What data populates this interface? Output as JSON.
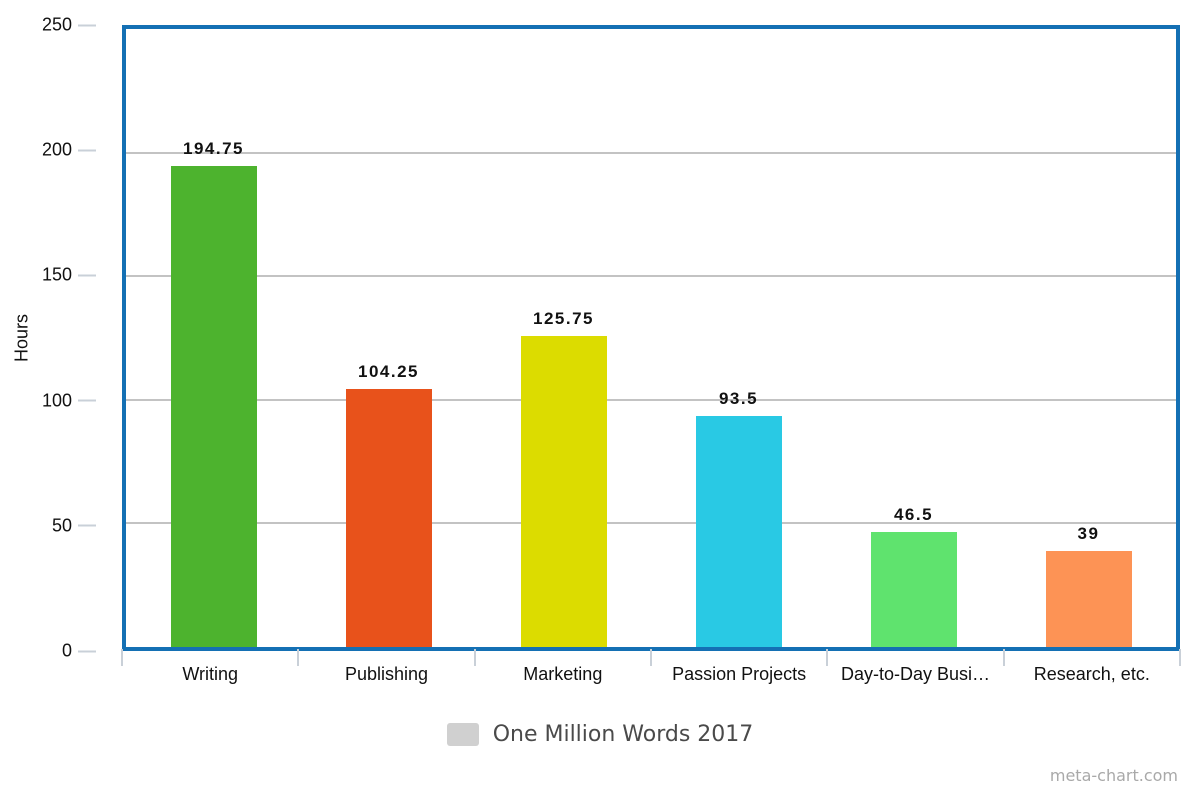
{
  "chart_data": {
    "type": "bar",
    "categories": [
      "Writing",
      "Publishing",
      "Marketing",
      "Passion Projects",
      "Day-to-Day Busi…",
      "Research, etc."
    ],
    "values": [
      194.75,
      104.25,
      125.75,
      93.5,
      46.5,
      39
    ],
    "value_labels": [
      "194.75",
      "104.25",
      "125.75",
      "93.5",
      "46.5",
      "39"
    ],
    "bar_colors": [
      "#4db32e",
      "#e8521b",
      "#dcdc00",
      "#29c9e4",
      "#5fe36e",
      "#fd9355"
    ],
    "title": "",
    "xlabel": "",
    "ylabel": "Hours",
    "ylim": [
      0,
      250
    ],
    "yticks": [
      0,
      50,
      100,
      150,
      200,
      250
    ],
    "grid": true,
    "legend": {
      "label": "One Million Words 2017",
      "swatch_color": "#d0d0d0",
      "position": "bottom"
    }
  },
  "watermark": "meta-chart.com",
  "colors": {
    "plot_border": "#1470b4",
    "gridline": "#c3c3c3",
    "tick_mark": "#c9d0d8",
    "axis_text": "#111111",
    "value_label_text": "#111111",
    "legend_text": "#4a4a4a",
    "watermark_text": "#a9a9a9",
    "background": "#ffffff"
  }
}
